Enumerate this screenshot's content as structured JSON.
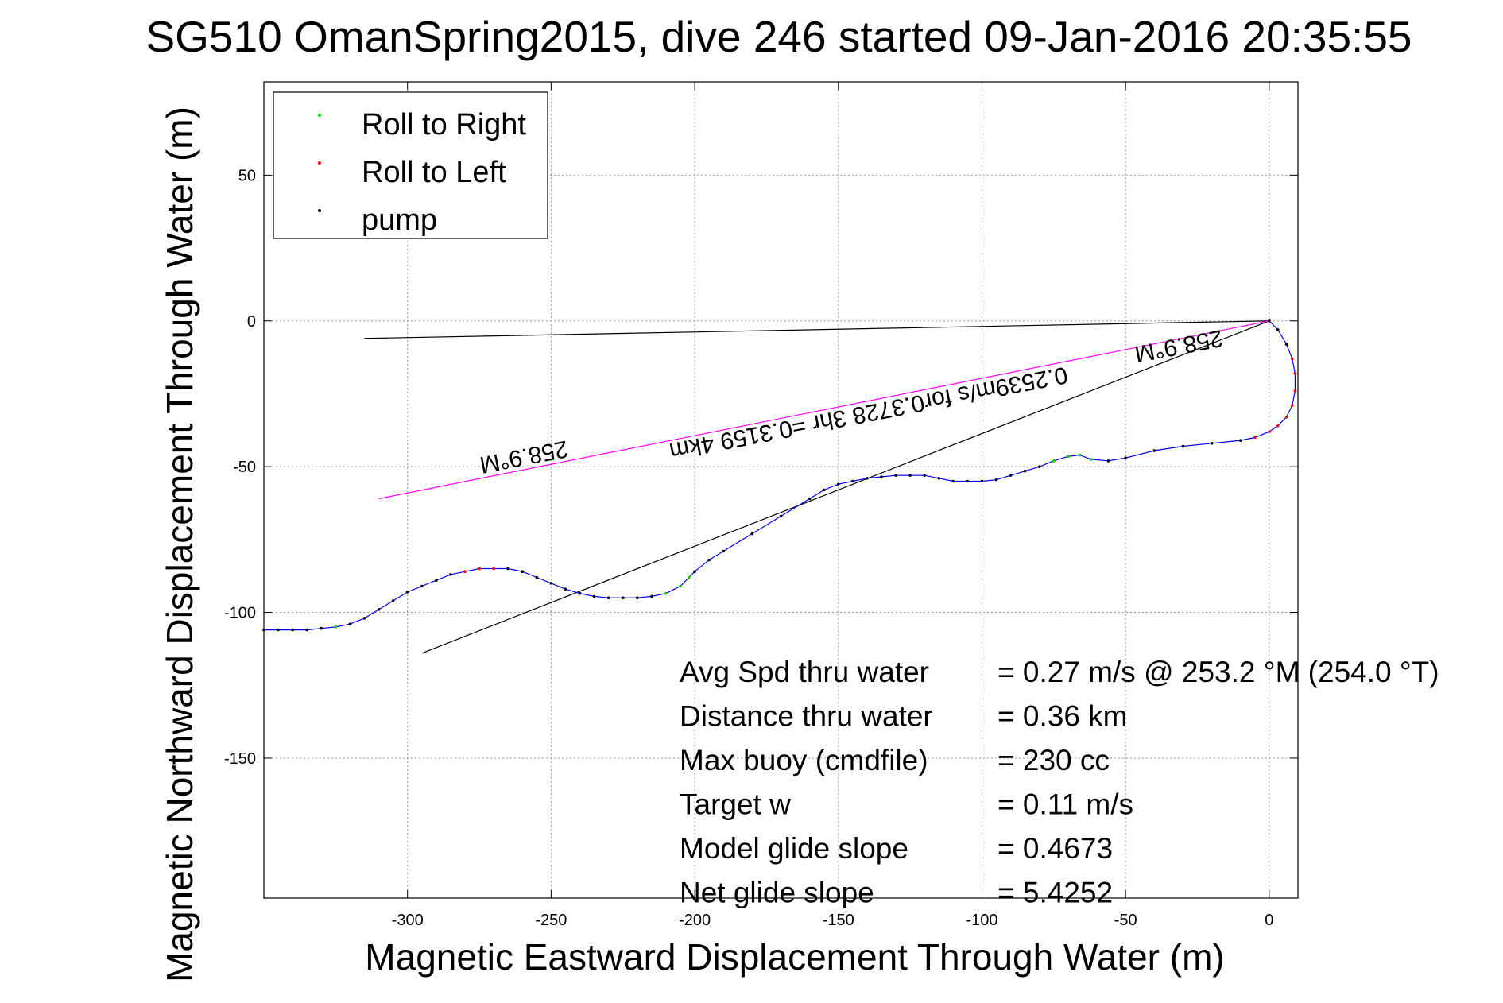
{
  "chart_data": {
    "type": "line",
    "title": "SG510 OmanSpring2015, dive 246 started 09-Jan-2016 20:35:55",
    "xlabel": "Magnetic Eastward Displacement Through Water (m)",
    "ylabel": "Magnetic Northward Displacement Through Water (m)",
    "xlim": [
      -350,
      10
    ],
    "ylim": [
      -198,
      82
    ],
    "xticks": [
      -300,
      -250,
      -200,
      -150,
      -100,
      -50,
      0
    ],
    "yticks": [
      -150,
      -100,
      -50,
      0,
      50
    ],
    "xtick_labels": [
      "-300",
      "-250",
      "-200",
      "-150",
      "-100",
      "-50",
      "0"
    ],
    "ytick_labels": [
      "-150",
      "-100",
      "-50",
      "0",
      "50"
    ],
    "grid": true,
    "legend_position": "top-left",
    "legend": [
      {
        "name": "Roll to Right",
        "color": "#00dd00"
      },
      {
        "name": "Roll to Left",
        "color": "#ff0000"
      },
      {
        "name": "pump",
        "color": "#000000"
      }
    ],
    "track": {
      "color": "#0000ff",
      "x": [
        0,
        3,
        6,
        8,
        9,
        9,
        8,
        6,
        3,
        0,
        -5,
        -10,
        -20,
        -30,
        -40,
        -50,
        -56,
        -62,
        -66,
        -70,
        -75,
        -80,
        -85,
        -90,
        -95,
        -100,
        -105,
        -110,
        -115,
        -120,
        -125,
        -130,
        -135,
        -140,
        -145,
        -150,
        -155,
        -160,
        -170,
        -180,
        -190,
        -195,
        -200,
        -202,
        -205,
        -210,
        -215,
        -220,
        -225,
        -230,
        -235,
        -240,
        -245,
        -250,
        -255,
        -260,
        -265,
        -270,
        -275,
        -280,
        -285,
        -290,
        -295,
        -300,
        -305,
        -310,
        -315,
        -320,
        -325,
        -330,
        -335,
        -340,
        -345,
        -350
      ],
      "y": [
        0,
        -3,
        -8,
        -13,
        -18,
        -24,
        -29,
        -33,
        -36,
        -38,
        -40,
        -41,
        -42,
        -43,
        -44.5,
        -47,
        -48,
        -47.5,
        -46,
        -46.5,
        -48,
        -50,
        -51.5,
        -53,
        -54.5,
        -55,
        -55,
        -55,
        -54,
        -53,
        -53,
        -53,
        -53.5,
        -54,
        -55,
        -56,
        -58,
        -61,
        -67,
        -73,
        -79,
        -82,
        -86,
        -88,
        -91,
        -93.5,
        -94.5,
        -95,
        -95,
        -95,
        -94.5,
        -93.5,
        -92,
        -90,
        -88,
        -86,
        -85,
        -85,
        -85,
        -86,
        -87,
        -89,
        -91,
        -93,
        -96,
        -99,
        -102,
        -104,
        -105,
        -105.5,
        -106,
        -106,
        -106,
        -106
      ]
    },
    "reference_lines": [
      {
        "name": "black-line-upper",
        "color": "#000000",
        "x": [
          -315,
          0
        ],
        "y": [
          -6,
          0
        ]
      },
      {
        "name": "black-line-lower",
        "color": "#000000",
        "x": [
          -295,
          0
        ],
        "y": [
          -114,
          0
        ]
      },
      {
        "name": "magenta-line",
        "color": "#ff00ff",
        "x": [
          -310,
          0
        ],
        "y": [
          -61,
          0
        ]
      }
    ],
    "annotations": [
      {
        "text": "258.9°M",
        "x": -260,
        "y": -44,
        "rotation": 169
      },
      {
        "text": "0.2539m/s for0.3728 3hr =0.3159 4km",
        "x": -140,
        "y": -29,
        "rotation": 169
      },
      {
        "text": "258.9°M",
        "x": -32,
        "y": -6,
        "rotation": 169
      }
    ],
    "stats": [
      {
        "label": "Avg Spd thru water",
        "value": "=  0.27 m/s @ 253.2 °M (254.0 °T)"
      },
      {
        "label": "Distance thru water",
        "value": "=  0.36 km"
      },
      {
        "label": "Max buoy (cmdfile)",
        "value": "= 230 cc"
      },
      {
        "label": "Target w",
        "value": "= 0.11 m/s"
      },
      {
        "label": "Model glide slope",
        "value": "= 0.4673"
      },
      {
        "label": "Net glide slope",
        "value": "= 5.4252"
      }
    ]
  }
}
